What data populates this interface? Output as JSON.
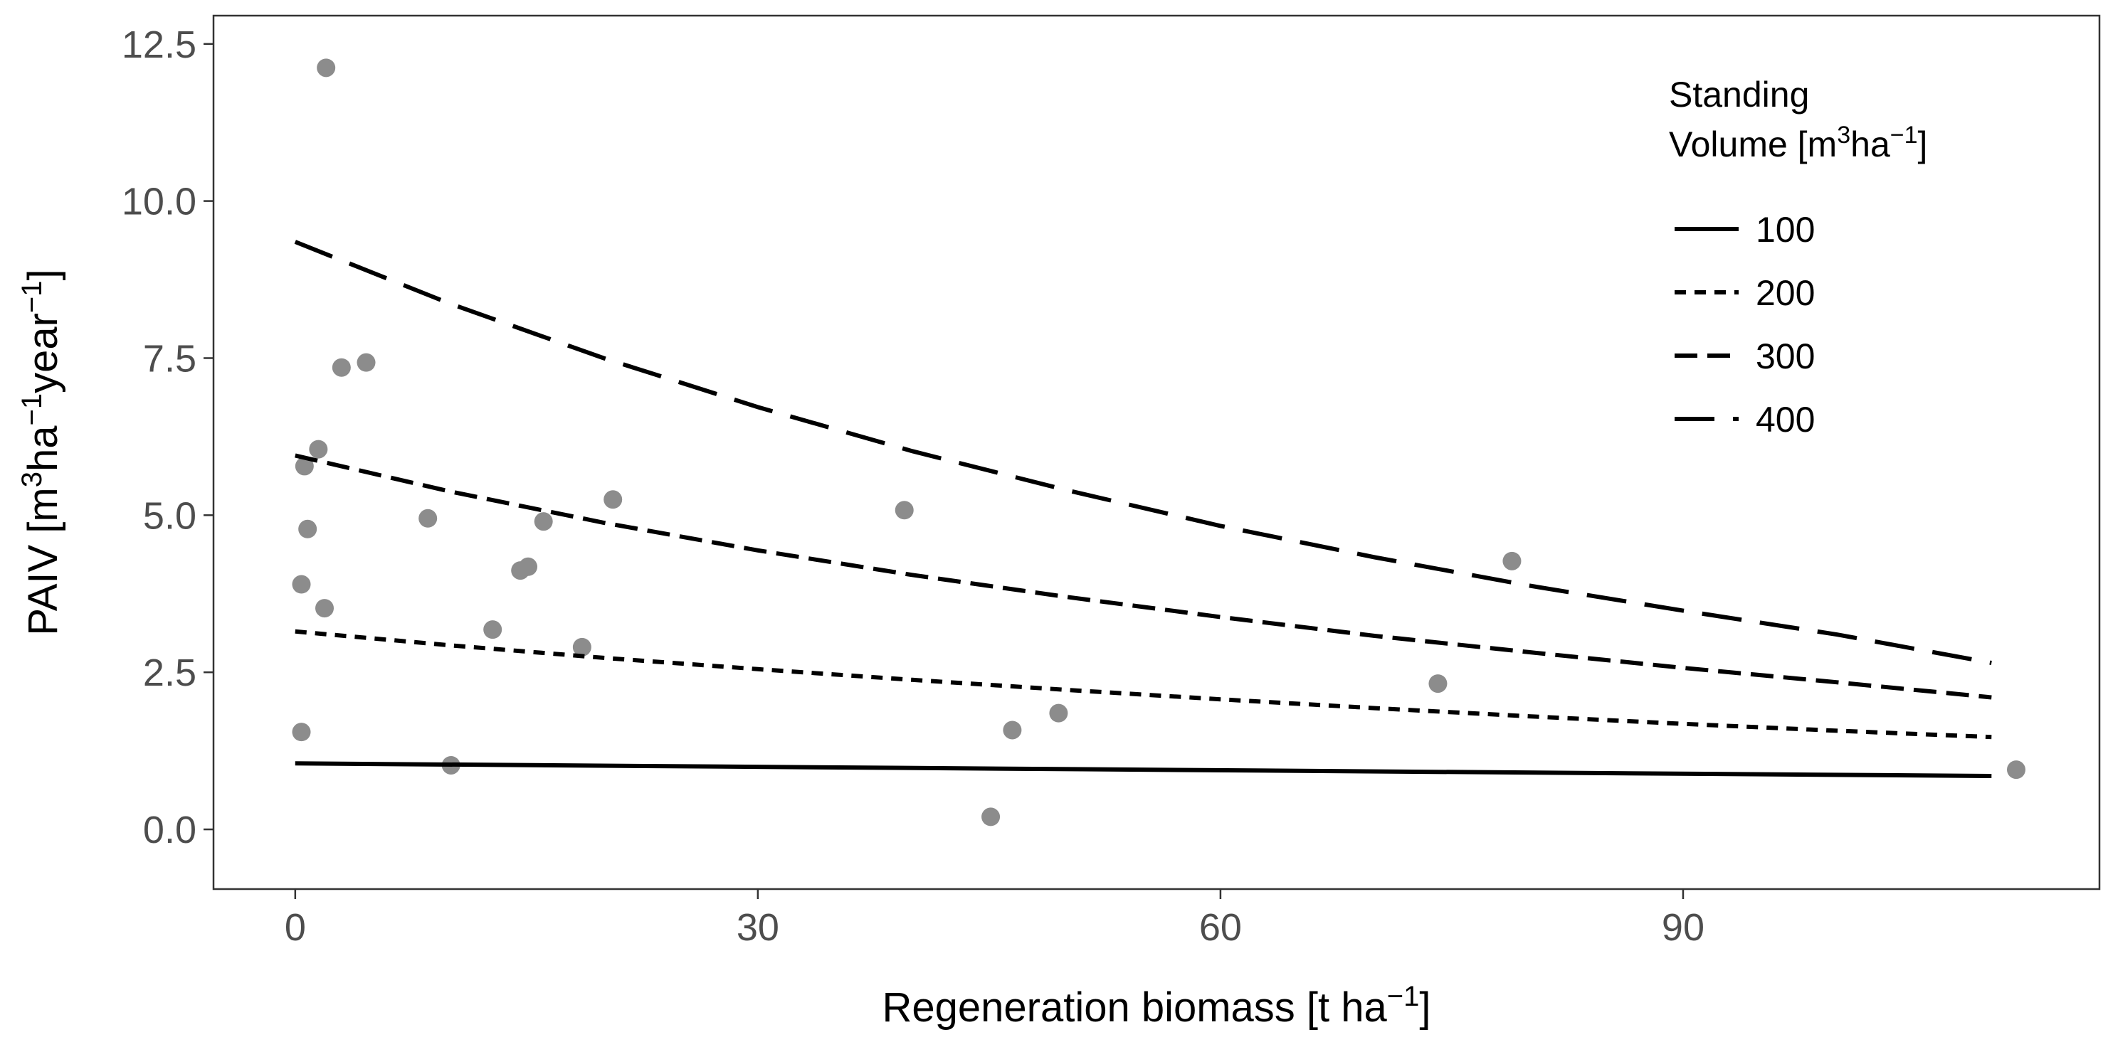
{
  "chart_data": {
    "type": "scatter",
    "title": "",
    "xlabel": {
      "main": "Regeneration biomass [t ha",
      "sup": "−1",
      "tail": "]"
    },
    "ylabel": {
      "p1": "PAIV [m",
      "s1": "3",
      "p2": "ha",
      "s2": "−1",
      "p3": "year",
      "s3": "−1",
      "p4": "]"
    },
    "xlim": [
      -5.3,
      117
    ],
    "ylim": [
      -0.95,
      12.95
    ],
    "x_ticks": [
      0,
      30,
      60,
      90
    ],
    "x_tick_labels": [
      "0",
      "30",
      "60",
      "90"
    ],
    "y_ticks": [
      0,
      2.5,
      5,
      7.5,
      10,
      12.5
    ],
    "y_tick_labels": [
      "0.0",
      "2.5",
      "5.0",
      "7.5",
      "10.0",
      "12.5"
    ],
    "grid": false,
    "legend": {
      "placement": "top-right inside",
      "title_line1": "Standing",
      "title_line2": {
        "p1": "Volume [m",
        "s1": "3",
        "p2": "ha",
        "s2": "−1",
        "p3": "]"
      },
      "entries": [
        "100",
        "200",
        "300",
        "400"
      ]
    },
    "colors": {
      "points": "#8c8c8c",
      "lines": "#000000",
      "axis": "#333333",
      "tick_labels": "#4d4d4d"
    },
    "points": [
      {
        "x": 0.4,
        "y": 1.55
      },
      {
        "x": 0.4,
        "y": 3.9
      },
      {
        "x": 0.6,
        "y": 5.78
      },
      {
        "x": 0.8,
        "y": 4.78
      },
      {
        "x": 1.5,
        "y": 6.05
      },
      {
        "x": 1.9,
        "y": 3.52
      },
      {
        "x": 2.0,
        "y": 12.12
      },
      {
        "x": 3.0,
        "y": 7.35
      },
      {
        "x": 4.6,
        "y": 7.43
      },
      {
        "x": 8.6,
        "y": 4.95
      },
      {
        "x": 10.1,
        "y": 1.02
      },
      {
        "x": 12.8,
        "y": 3.18
      },
      {
        "x": 14.6,
        "y": 4.12
      },
      {
        "x": 15.1,
        "y": 4.18
      },
      {
        "x": 16.1,
        "y": 4.9
      },
      {
        "x": 18.6,
        "y": 2.9
      },
      {
        "x": 20.6,
        "y": 5.25
      },
      {
        "x": 39.5,
        "y": 5.08
      },
      {
        "x": 45.1,
        "y": 0.2
      },
      {
        "x": 46.5,
        "y": 1.58
      },
      {
        "x": 49.5,
        "y": 1.85
      },
      {
        "x": 74.1,
        "y": 2.32
      },
      {
        "x": 78.9,
        "y": 4.27
      },
      {
        "x": 111.6,
        "y": 0.95
      }
    ],
    "series": [
      {
        "name": "100",
        "dash": "solid",
        "x": [
          0,
          110
        ],
        "y": [
          1.05,
          0.85
        ]
      },
      {
        "name": "200",
        "dash": "short",
        "x": [
          0,
          10,
          20,
          30,
          40,
          50,
          60,
          70,
          80,
          90,
          100,
          110
        ],
        "y": [
          3.15,
          2.93,
          2.73,
          2.55,
          2.38,
          2.22,
          2.07,
          1.93,
          1.8,
          1.68,
          1.57,
          1.47
        ]
      },
      {
        "name": "300",
        "dash": "medium",
        "x": [
          0,
          10,
          20,
          30,
          40,
          50,
          60,
          70,
          80,
          90,
          100,
          110
        ],
        "y": [
          5.95,
          5.38,
          4.88,
          4.44,
          4.05,
          3.7,
          3.38,
          3.08,
          2.82,
          2.57,
          2.34,
          2.1
        ]
      },
      {
        "name": "400",
        "dash": "long",
        "x": [
          0,
          10,
          20,
          30,
          40,
          50,
          60,
          70,
          80,
          90,
          100,
          110
        ],
        "y": [
          9.35,
          8.37,
          7.5,
          6.72,
          6.02,
          5.4,
          4.83,
          4.33,
          3.88,
          3.48,
          3.1,
          2.65
        ]
      }
    ]
  }
}
